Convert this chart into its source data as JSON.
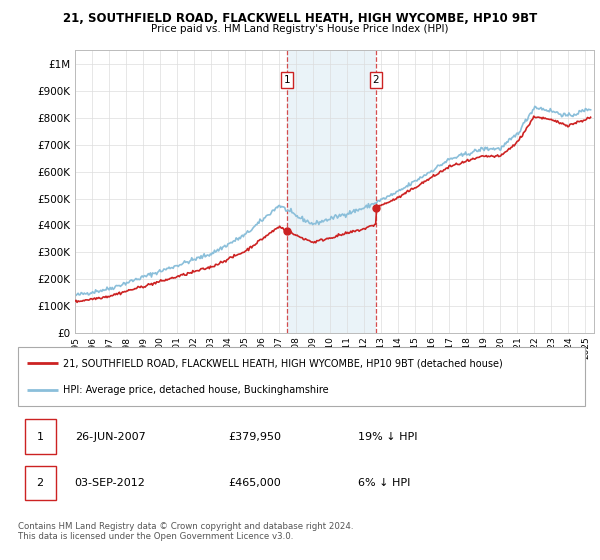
{
  "title1": "21, SOUTHFIELD ROAD, FLACKWELL HEATH, HIGH WYCOMBE, HP10 9BT",
  "title2": "Price paid vs. HM Land Registry's House Price Index (HPI)",
  "ylabel_ticks": [
    "£0",
    "£100K",
    "£200K",
    "£300K",
    "£400K",
    "£500K",
    "£600K",
    "£700K",
    "£800K",
    "£900K",
    "£1M"
  ],
  "ytick_values": [
    0,
    100000,
    200000,
    300000,
    400000,
    500000,
    600000,
    700000,
    800000,
    900000,
    1000000
  ],
  "ylim": [
    0,
    1050000
  ],
  "xlim_start": 1995.0,
  "xlim_end": 2025.5,
  "hpi_color": "#8bbfda",
  "price_color": "#cc2222",
  "sale1_x": 2007.48,
  "sale1_y": 379950,
  "sale2_x": 2012.67,
  "sale2_y": 465000,
  "shade_x1": 2007.48,
  "shade_x2": 2012.67,
  "legend_text1": "21, SOUTHFIELD ROAD, FLACKWELL HEATH, HIGH WYCOMBE, HP10 9BT (detached house)",
  "legend_text2": "HPI: Average price, detached house, Buckinghamshire",
  "table_row1_date": "26-JUN-2007",
  "table_row1_price": "£379,950",
  "table_row1_hpi": "19% ↓ HPI",
  "table_row2_date": "03-SEP-2012",
  "table_row2_price": "£465,000",
  "table_row2_hpi": "6% ↓ HPI",
  "footer": "Contains HM Land Registry data © Crown copyright and database right 2024.\nThis data is licensed under the Open Government Licence v3.0.",
  "background_color": "#ffffff",
  "grid_color": "#dddddd"
}
